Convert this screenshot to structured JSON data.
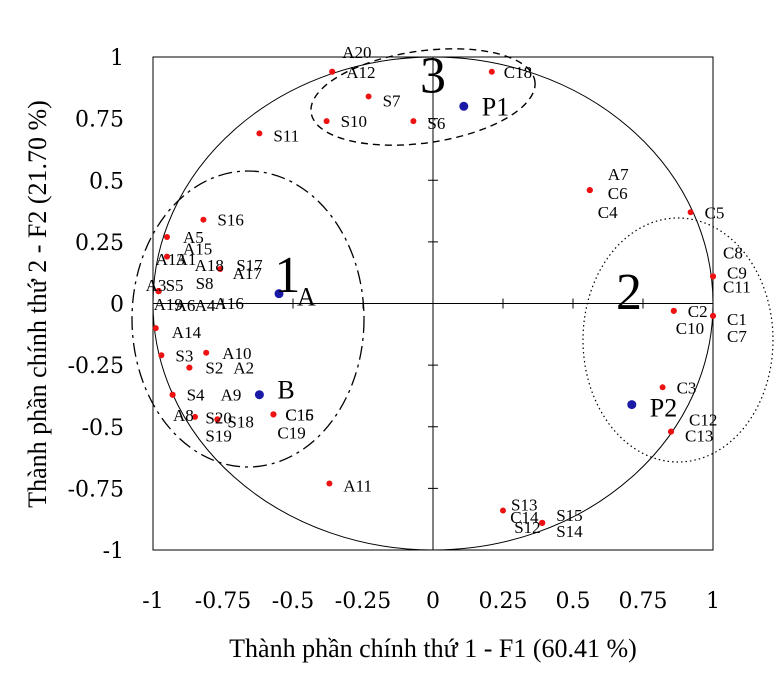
{
  "chart_data": {
    "type": "scatter",
    "title": "",
    "xlabel": "Thành phần chính thứ 1 - F1 (60.41 %)",
    "ylabel": "Thành phần chính thứ 2 - F2 (21.70 %)",
    "xlim": [
      -1,
      1
    ],
    "ylim": [
      -1,
      1
    ],
    "grid": false,
    "x_ticks": [
      "-1",
      "-0.75",
      "-0.5",
      "-0.25",
      "0",
      "0.25",
      "0.5",
      "0.75",
      "1"
    ],
    "y_ticks": [
      "1",
      "0.75",
      "0.5",
      "0.25",
      "0",
      "-0.25",
      "-0.5",
      "-0.75",
      "-1"
    ],
    "x_tick_values": [
      -1,
      -0.75,
      -0.5,
      -0.25,
      0,
      0.25,
      0.5,
      0.75,
      1
    ],
    "y_tick_values": [
      1,
      0.75,
      0.5,
      0.25,
      0,
      -0.25,
      -0.5,
      -0.75,
      -1
    ],
    "unit_circle": true,
    "points": [
      {
        "label": "A20",
        "x": -0.36,
        "y": 0.94
      },
      {
        "label": "A12",
        "x": -0.36,
        "y": 0.94
      },
      {
        "label": "C18",
        "x": 0.21,
        "y": 0.94
      },
      {
        "label": "S7",
        "x": -0.23,
        "y": 0.84
      },
      {
        "label": "S10",
        "x": -0.38,
        "y": 0.74
      },
      {
        "label": "S6",
        "x": -0.07,
        "y": 0.74
      },
      {
        "label": "S11",
        "x": -0.62,
        "y": 0.69
      },
      {
        "label": "A7",
        "x": 0.56,
        "y": 0.46
      },
      {
        "label": "C6",
        "x": 0.56,
        "y": 0.46
      },
      {
        "label": "C4",
        "x": 0.56,
        "y": 0.46
      },
      {
        "label": "C5",
        "x": 0.92,
        "y": 0.37
      },
      {
        "label": "S16",
        "x": -0.82,
        "y": 0.34
      },
      {
        "label": "A5",
        "x": -0.95,
        "y": 0.27
      },
      {
        "label": "A15",
        "x": -0.95,
        "y": 0.19
      },
      {
        "label": "S17",
        "x": -0.76,
        "y": 0.14
      },
      {
        "label": "A13",
        "x": -0.98,
        "y": 0.05
      },
      {
        "label": "A1",
        "x": -0.98,
        "y": 0.05
      },
      {
        "label": "A18",
        "x": -0.98,
        "y": 0.05
      },
      {
        "label": "A17",
        "x": -0.98,
        "y": 0.05
      },
      {
        "label": "A3",
        "x": -0.98,
        "y": 0.05
      },
      {
        "label": "S5",
        "x": -0.98,
        "y": 0.05
      },
      {
        "label": "S8",
        "x": -0.98,
        "y": 0.05
      },
      {
        "label": "A19",
        "x": -0.98,
        "y": 0.05
      },
      {
        "label": "A6",
        "x": -0.98,
        "y": 0.05
      },
      {
        "label": "A4",
        "x": -0.98,
        "y": 0.05
      },
      {
        "label": "A16",
        "x": -0.98,
        "y": 0.05
      },
      {
        "label": "C9",
        "x": 1.0,
        "y": 0.11
      },
      {
        "label": "C8",
        "x": 1.0,
        "y": 0.11
      },
      {
        "label": "C11",
        "x": 1.0,
        "y": 0.11
      },
      {
        "label": "A14",
        "x": -0.99,
        "y": -0.1
      },
      {
        "label": "C2",
        "x": 0.86,
        "y": -0.03
      },
      {
        "label": "C10",
        "x": 0.86,
        "y": -0.03
      },
      {
        "label": "C1",
        "x": 1.0,
        "y": -0.05
      },
      {
        "label": "C7",
        "x": 1.0,
        "y": -0.05
      },
      {
        "label": "S3",
        "x": -0.97,
        "y": -0.21
      },
      {
        "label": "A10",
        "x": -0.81,
        "y": -0.2
      },
      {
        "label": "S2",
        "x": -0.87,
        "y": -0.26
      },
      {
        "label": "A2",
        "x": -0.87,
        "y": -0.26
      },
      {
        "label": "S4",
        "x": -0.93,
        "y": -0.37
      },
      {
        "label": "A9",
        "x": -0.93,
        "y": -0.37
      },
      {
        "label": "C3",
        "x": 0.82,
        "y": -0.34
      },
      {
        "label": "A8",
        "x": -0.85,
        "y": -0.46
      },
      {
        "label": "S20",
        "x": -0.77,
        "y": -0.47
      },
      {
        "label": "S18",
        "x": -0.77,
        "y": -0.47
      },
      {
        "label": "S19",
        "x": -0.77,
        "y": -0.47
      },
      {
        "label": "C16",
        "x": -0.57,
        "y": -0.45
      },
      {
        "label": "C15",
        "x": -0.57,
        "y": -0.45
      },
      {
        "label": "C19",
        "x": -0.57,
        "y": -0.45
      },
      {
        "label": "C12",
        "x": 0.85,
        "y": -0.52
      },
      {
        "label": "C13",
        "x": 0.85,
        "y": -0.52
      },
      {
        "label": "A11",
        "x": -0.37,
        "y": -0.73
      },
      {
        "label": "S13",
        "x": 0.25,
        "y": -0.84
      },
      {
        "label": "C14",
        "x": 0.39,
        "y": -0.89
      },
      {
        "label": "S12",
        "x": 0.39,
        "y": -0.89
      },
      {
        "label": "S15",
        "x": 0.39,
        "y": -0.89
      },
      {
        "label": "S14",
        "x": 0.39,
        "y": -0.89
      }
    ],
    "special_points": [
      {
        "label": "P1",
        "x": 0.11,
        "y": 0.8,
        "color": "#1a1aa6"
      },
      {
        "label": "A",
        "x": -0.55,
        "y": 0.04,
        "color": "#1a1aa6"
      },
      {
        "label": "B",
        "x": -0.62,
        "y": -0.37,
        "color": "#1a1aa6"
      },
      {
        "label": "P2",
        "x": 0.71,
        "y": -0.41,
        "color": "#1a1aa6"
      }
    ],
    "groups": [
      {
        "label": "1",
        "x": -0.52,
        "y": 0.12,
        "style": "dashdot"
      },
      {
        "label": "2",
        "x": 0.7,
        "y": 0.05,
        "style": "dotted"
      },
      {
        "label": "3",
        "x": 0.0,
        "y": 0.93,
        "style": "dashed"
      }
    ],
    "point_color": "#ee1111"
  }
}
